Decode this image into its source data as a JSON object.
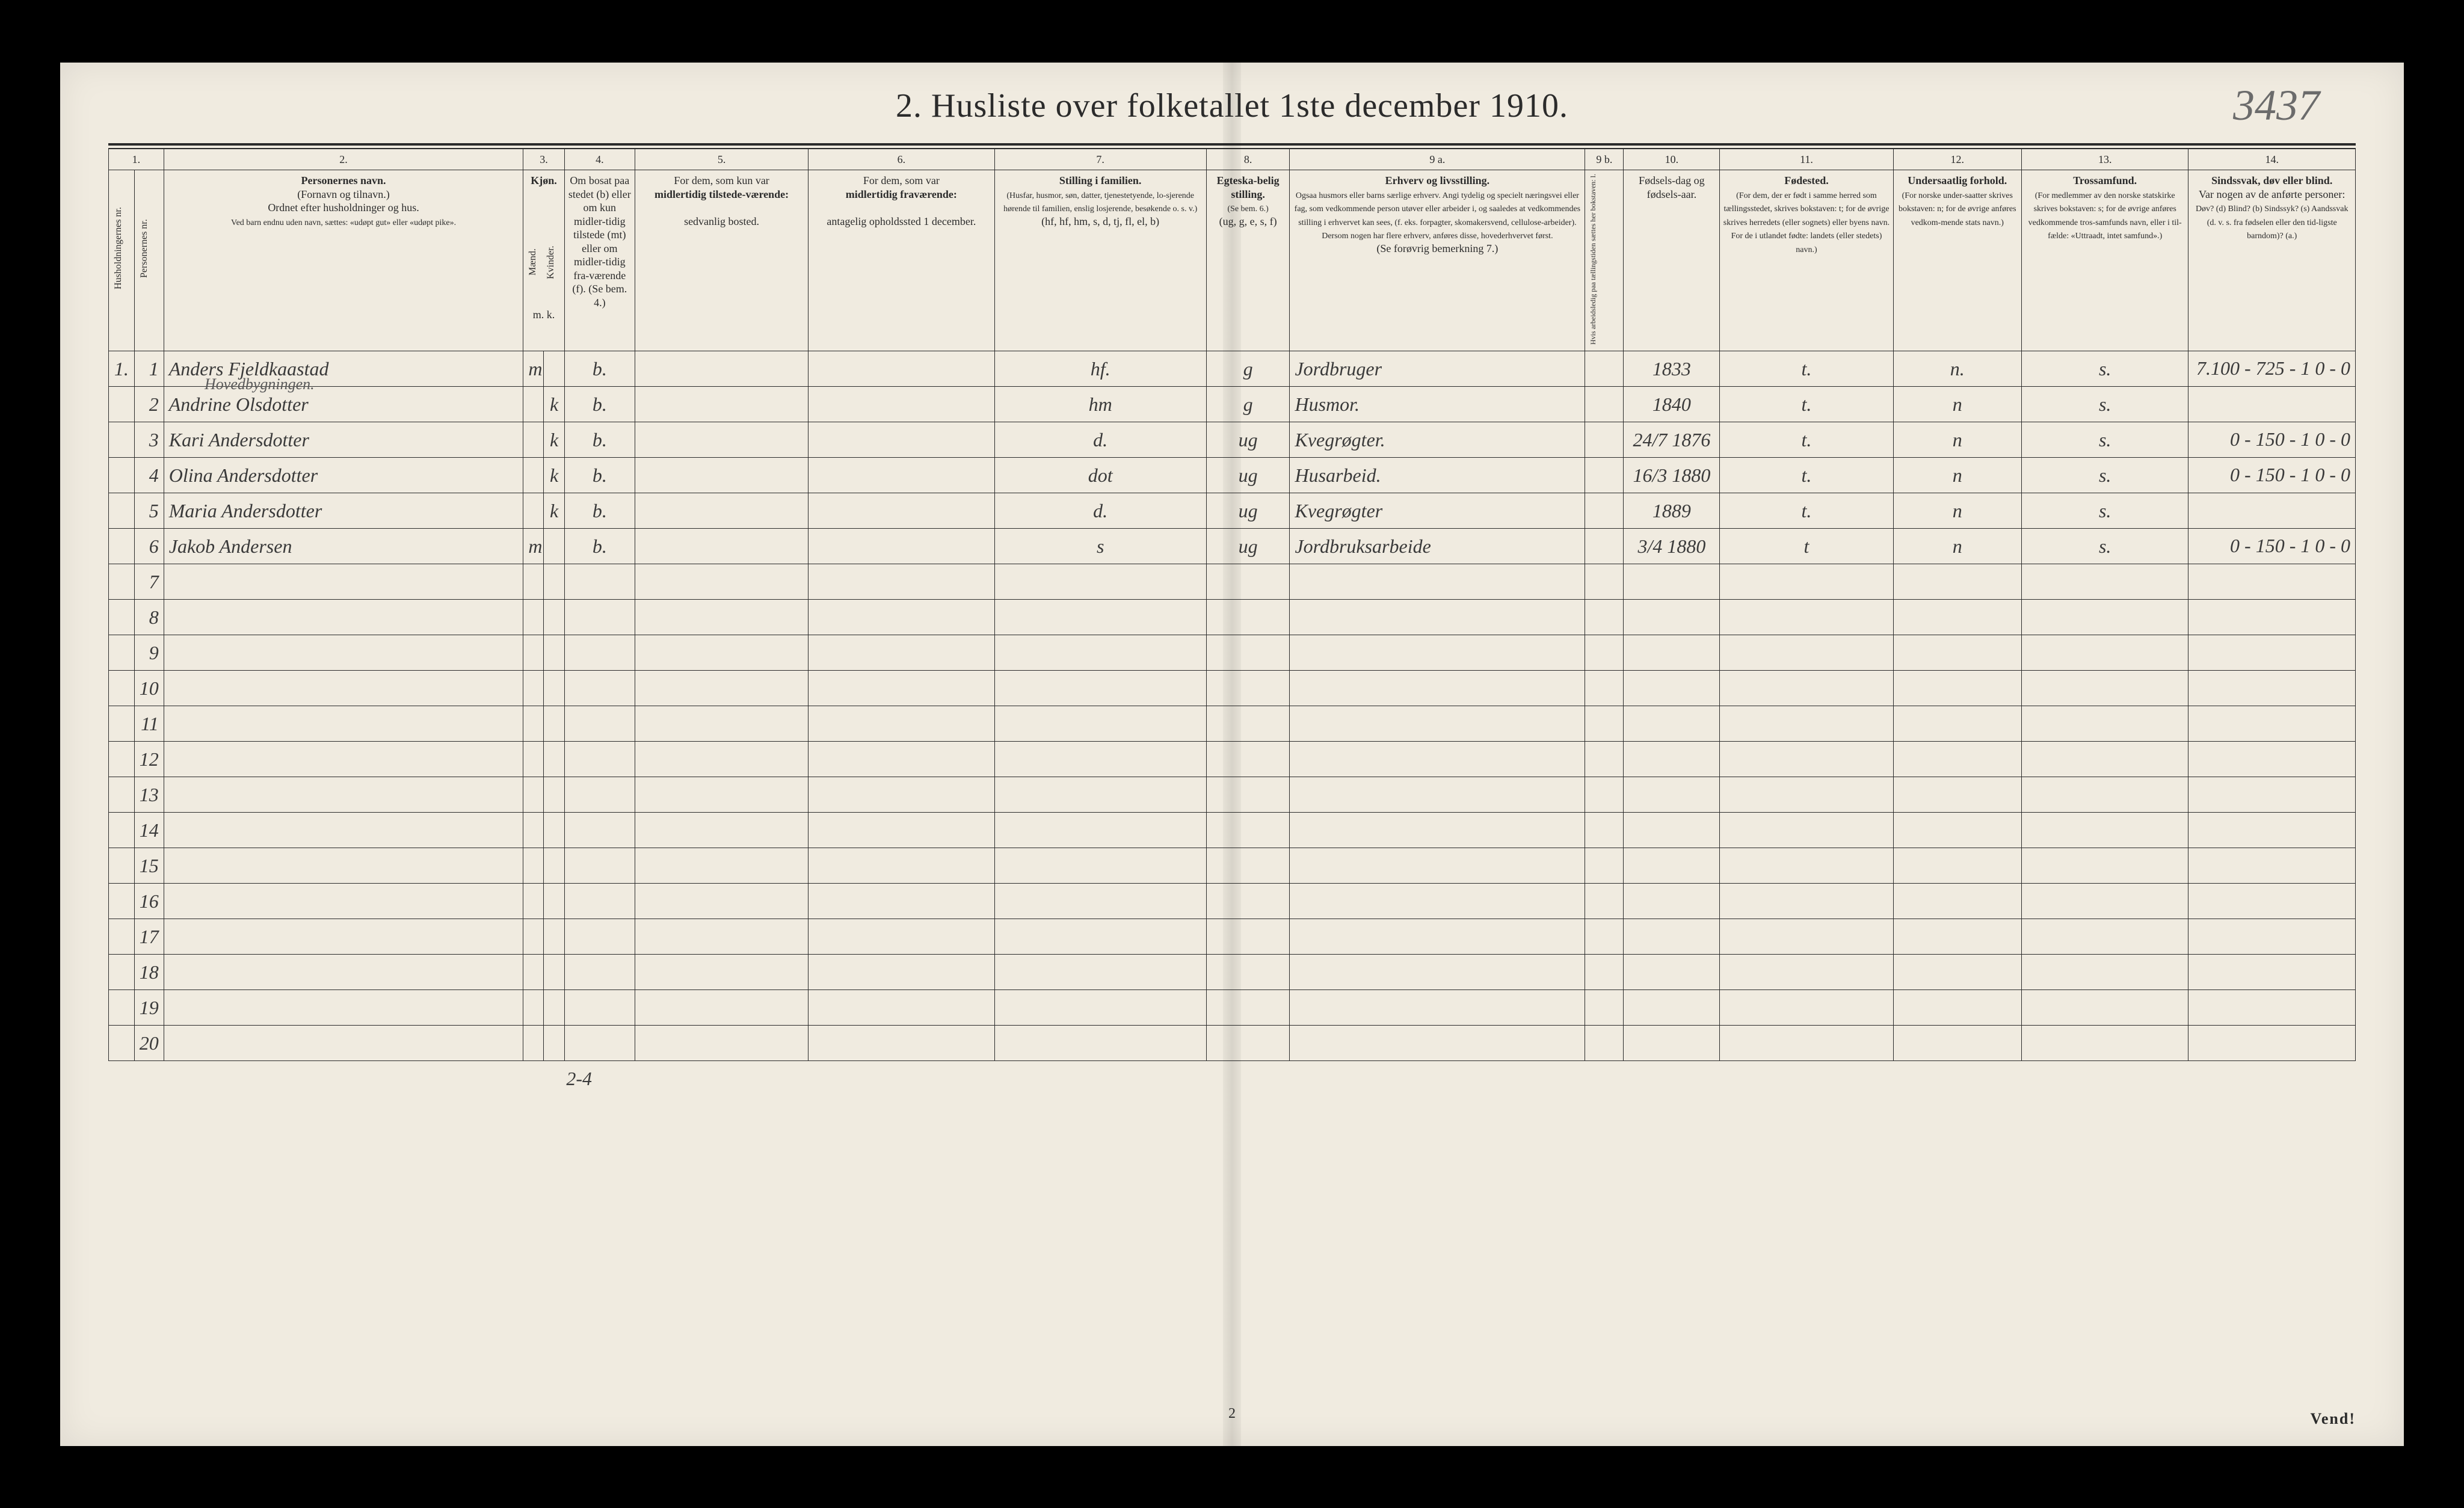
{
  "title": "2.  Husliste over folketallet 1ste december 1910.",
  "form_number": "3437",
  "page_number_bottom": "2",
  "vend": "Vend!",
  "hovedbygningen": "Hovedbygningen.",
  "tally_note": "2-4",
  "columns": {
    "c1": "1.",
    "c2": "2.",
    "c3": "3.",
    "c4": "4.",
    "c5": "5.",
    "c6": "6.",
    "c7": "7.",
    "c8": "8.",
    "c9a": "9 a.",
    "c9b": "9 b.",
    "c10": "10.",
    "c11": "11.",
    "c12": "12.",
    "c13": "13.",
    "c14": "14."
  },
  "headers": {
    "c1": "Husholdningernes nr.",
    "c1b": "Personernes nr.",
    "c2_title": "Personernes navn.",
    "c2_sub1": "(Fornavn og tilnavn.)",
    "c2_sub2": "Ordnet efter husholdninger og hus.",
    "c2_sub3": "Ved barn endnu uden navn, sættes: «udøpt gut» eller «udøpt pike».",
    "c3_title": "Kjøn.",
    "c3_m": "Mænd.",
    "c3_k": "Kvinder.",
    "c3_mk": "m.  k.",
    "c4": "Om bosat paa stedet (b) eller om kun midler-tidig tilstede (mt) eller om midler-tidig fra-værende (f). (Se bem. 4.)",
    "c5_a": "For dem, som kun var",
    "c5_b": "midlertidig tilstede-værende:",
    "c5_c": "sedvanlig bosted.",
    "c6_a": "For dem, som var",
    "c6_b": "midlertidig fraværende:",
    "c6_c": "antagelig opholdssted 1 december.",
    "c7_a": "Stilling i familien.",
    "c7_b": "(Husfar, husmor, søn, datter, tjenestetyende, lo-sjerende hørende til familien, enslig losjerende, besøkende o. s. v.)",
    "c7_c": "(hf, hf, hm, s, d, tj, fl, el, b)",
    "c8_a": "Egteska-belig stilling.",
    "c8_b": "(Se bem. 6.)",
    "c8_c": "(ug, g, e, s, f)",
    "c9a_a": "Erhverv og livsstilling.",
    "c9a_b": "Ogsaa husmors eller barns særlige erhverv. Angi tydelig og specielt næringsvei eller fag, som vedkommende person utøver eller arbeider i, og saaledes at vedkommendes stilling i erhvervet kan sees, (f. eks. forpagter, skomakersvend, cellulose-arbeider). Dersom nogen har flere erhverv, anføres disse, hovederhvervet først.",
    "c9a_c": "(Se forøvrig bemerkning 7.)",
    "c9b": "Hvis arbeidsledig paa tællingstiden sættes her bokstaven: l.",
    "c10": "Fødsels-dag og fødsels-aar.",
    "c11_a": "Fødested.",
    "c11_b": "(For dem, der er født i samme herred som tællingsstedet, skrives bokstaven: t; for de øvrige skrives herredets (eller sognets) eller byens navn. For de i utlandet fødte: landets (eller stedets) navn.)",
    "c12_a": "Undersaatlig forhold.",
    "c12_b": "(For norske under-saatter skrives bokstaven: n; for de øvrige anføres vedkom-mende stats navn.)",
    "c13_a": "Trossamfund.",
    "c13_b": "(For medlemmer av den norske statskirke skrives bokstaven: s; for de øvrige anføres vedkommende tros-samfunds navn, eller i til-fælde: «Uttraadt, intet samfund».)",
    "c14_a": "Sindssvak, døv eller blind.",
    "c14_b": "Var nogen av de anførte personer:",
    "c14_c": "Døv? (d)  Blind? (b)  Sindssyk? (s)  Aandssvak (d. v. s. fra fødselen eller den tid-ligste barndom)? (a.)"
  },
  "rows": [
    {
      "hh": "1.",
      "pn": "1",
      "name": "Anders Fjeldkaastad",
      "sex_m": "m",
      "sex_k": "",
      "res": "b.",
      "c7": "hf.",
      "c8": "g",
      "c9a": "Jordbruger",
      "c10": "1833",
      "c11": "t.",
      "c12": "n.",
      "c13": "s.",
      "c14": "7.100 - 725 - 1   0 - 0"
    },
    {
      "hh": "",
      "pn": "2",
      "name": "Andrine Olsdotter",
      "sex_m": "",
      "sex_k": "k",
      "res": "b.",
      "c7": "hm",
      "c8": "g",
      "c9a": "Husmor.",
      "c10": "1840",
      "c11": "t.",
      "c12": "n",
      "c13": "s.",
      "c14": ""
    },
    {
      "hh": "",
      "pn": "3",
      "name": "Kari Andersdotter",
      "sex_m": "",
      "sex_k": "k",
      "res": "b.",
      "c7": "d.",
      "c8": "ug",
      "c9a": "Kvegrøgter.",
      "c10": "24/7 1876",
      "c11": "t.",
      "c12": "n",
      "c13": "s.",
      "c14": "0 - 150 - 1   0 - 0"
    },
    {
      "hh": "",
      "pn": "4",
      "name": "Olina Andersdotter",
      "sex_m": "",
      "sex_k": "k",
      "res": "b.",
      "c7": "dot",
      "c8": "ug",
      "c9a": "Husarbeid.",
      "c10": "16/3 1880",
      "c11": "t.",
      "c12": "n",
      "c13": "s.",
      "c14": "0 - 150 - 1   0 - 0"
    },
    {
      "hh": "",
      "pn": "5",
      "name": "Maria Andersdotter",
      "sex_m": "",
      "sex_k": "k",
      "res": "b.",
      "c7": "d.",
      "c8": "ug",
      "c9a": "Kvegrøgter",
      "c10": "1889",
      "c11": "t.",
      "c12": "n",
      "c13": "s.",
      "c14": ""
    },
    {
      "hh": "",
      "pn": "6",
      "name": "Jakob Andersen",
      "sex_m": "m",
      "sex_k": "",
      "res": "b.",
      "c7": "s",
      "c8": "ug",
      "c9a": "Jordbruksarbeide",
      "c10": "3/4 1880",
      "c11": "t",
      "c12": "n",
      "c13": "s.",
      "c14": "0 - 150 - 1   0 - 0"
    },
    {
      "hh": "",
      "pn": "7",
      "name": "",
      "sex_m": "",
      "sex_k": "",
      "res": "",
      "c7": "",
      "c8": "",
      "c9a": "",
      "c10": "",
      "c11": "",
      "c12": "",
      "c13": "",
      "c14": ""
    },
    {
      "hh": "",
      "pn": "8",
      "name": "",
      "sex_m": "",
      "sex_k": "",
      "res": "",
      "c7": "",
      "c8": "",
      "c9a": "",
      "c10": "",
      "c11": "",
      "c12": "",
      "c13": "",
      "c14": ""
    },
    {
      "hh": "",
      "pn": "9",
      "name": "",
      "sex_m": "",
      "sex_k": "",
      "res": "",
      "c7": "",
      "c8": "",
      "c9a": "",
      "c10": "",
      "c11": "",
      "c12": "",
      "c13": "",
      "c14": ""
    },
    {
      "hh": "",
      "pn": "10",
      "name": "",
      "sex_m": "",
      "sex_k": "",
      "res": "",
      "c7": "",
      "c8": "",
      "c9a": "",
      "c10": "",
      "c11": "",
      "c12": "",
      "c13": "",
      "c14": ""
    },
    {
      "hh": "",
      "pn": "11",
      "name": "",
      "sex_m": "",
      "sex_k": "",
      "res": "",
      "c7": "",
      "c8": "",
      "c9a": "",
      "c10": "",
      "c11": "",
      "c12": "",
      "c13": "",
      "c14": ""
    },
    {
      "hh": "",
      "pn": "12",
      "name": "",
      "sex_m": "",
      "sex_k": "",
      "res": "",
      "c7": "",
      "c8": "",
      "c9a": "",
      "c10": "",
      "c11": "",
      "c12": "",
      "c13": "",
      "c14": ""
    },
    {
      "hh": "",
      "pn": "13",
      "name": "",
      "sex_m": "",
      "sex_k": "",
      "res": "",
      "c7": "",
      "c8": "",
      "c9a": "",
      "c10": "",
      "c11": "",
      "c12": "",
      "c13": "",
      "c14": ""
    },
    {
      "hh": "",
      "pn": "14",
      "name": "",
      "sex_m": "",
      "sex_k": "",
      "res": "",
      "c7": "",
      "c8": "",
      "c9a": "",
      "c10": "",
      "c11": "",
      "c12": "",
      "c13": "",
      "c14": ""
    },
    {
      "hh": "",
      "pn": "15",
      "name": "",
      "sex_m": "",
      "sex_k": "",
      "res": "",
      "c7": "",
      "c8": "",
      "c9a": "",
      "c10": "",
      "c11": "",
      "c12": "",
      "c13": "",
      "c14": ""
    },
    {
      "hh": "",
      "pn": "16",
      "name": "",
      "sex_m": "",
      "sex_k": "",
      "res": "",
      "c7": "",
      "c8": "",
      "c9a": "",
      "c10": "",
      "c11": "",
      "c12": "",
      "c13": "",
      "c14": ""
    },
    {
      "hh": "",
      "pn": "17",
      "name": "",
      "sex_m": "",
      "sex_k": "",
      "res": "",
      "c7": "",
      "c8": "",
      "c9a": "",
      "c10": "",
      "c11": "",
      "c12": "",
      "c13": "",
      "c14": ""
    },
    {
      "hh": "",
      "pn": "18",
      "name": "",
      "sex_m": "",
      "sex_k": "",
      "res": "",
      "c7": "",
      "c8": "",
      "c9a": "",
      "c10": "",
      "c11": "",
      "c12": "",
      "c13": "",
      "c14": ""
    },
    {
      "hh": "",
      "pn": "19",
      "name": "",
      "sex_m": "",
      "sex_k": "",
      "res": "",
      "c7": "",
      "c8": "",
      "c9a": "",
      "c10": "",
      "c11": "",
      "c12": "",
      "c13": "",
      "c14": ""
    },
    {
      "hh": "",
      "pn": "20",
      "name": "",
      "sex_m": "",
      "sex_k": "",
      "res": "",
      "c7": "",
      "c8": "",
      "c9a": "",
      "c10": "",
      "c11": "",
      "c12": "",
      "c13": "",
      "c14": ""
    }
  ]
}
